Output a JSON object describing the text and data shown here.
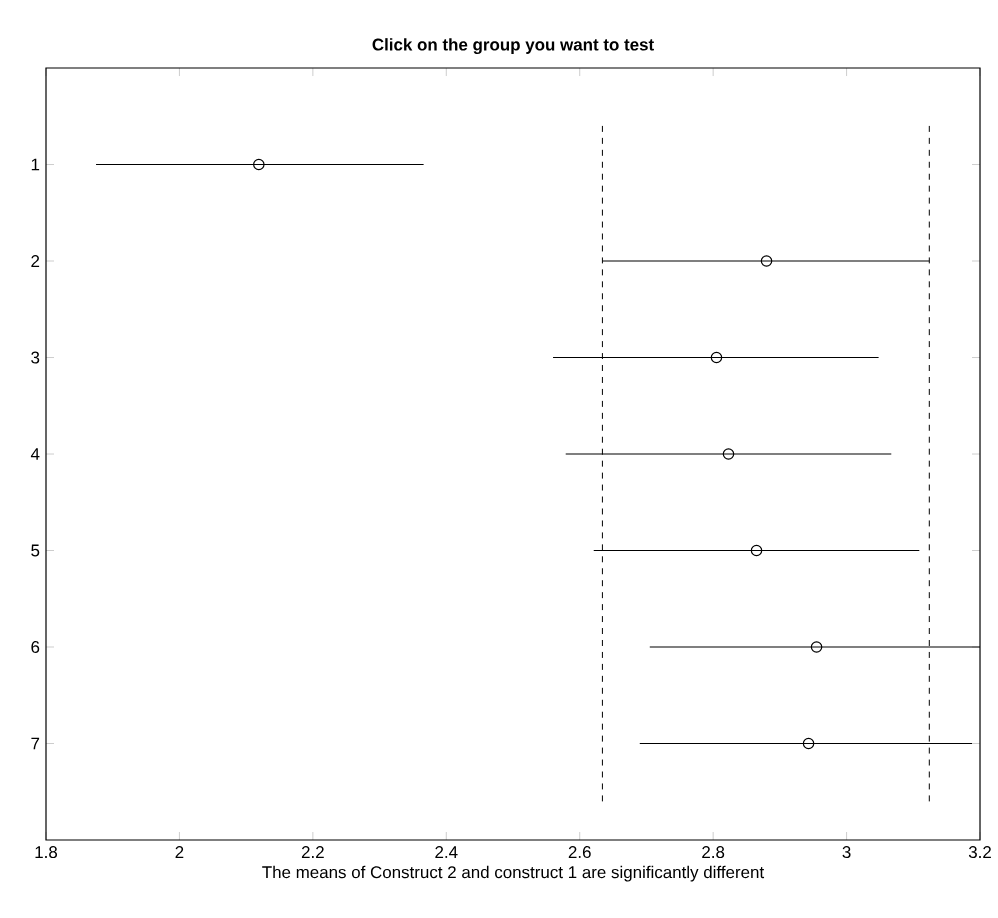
{
  "chart_data": {
    "type": "scatter",
    "title": "Click on the group you want to test",
    "xlabel": "The means of Construct 2 and construct 1 are significantly different",
    "x": [
      2.119,
      2.88,
      2.805,
      2.823,
      2.865,
      2.955,
      2.943
    ],
    "values": [
      1,
      2,
      3,
      4,
      5,
      6,
      7
    ],
    "xerrors": [
      [
        1.875,
        2.366
      ],
      [
        2.634,
        3.124
      ],
      [
        2.56,
        3.048
      ],
      [
        2.579,
        3.067
      ],
      [
        2.621,
        3.109
      ],
      [
        2.705,
        3.2
      ],
      [
        2.69,
        3.188
      ]
    ],
    "color": "#000000",
    "marker": "circle",
    "xlim": [
      1.8,
      3.2
    ],
    "xticks": [
      1.8,
      2,
      2.2,
      2.4,
      2.6,
      2.8,
      3,
      3.2
    ],
    "ylim": [
      8,
      0
    ],
    "yticks": [
      1,
      2,
      3,
      4,
      5,
      6,
      7
    ],
    "ref_lines": [
      {
        "axis": "x",
        "value": 2.634,
        "line_style": "dashed"
      },
      {
        "axis": "x",
        "value": 3.124,
        "line_style": "dashed"
      }
    ],
    "line_style": "solid"
  }
}
